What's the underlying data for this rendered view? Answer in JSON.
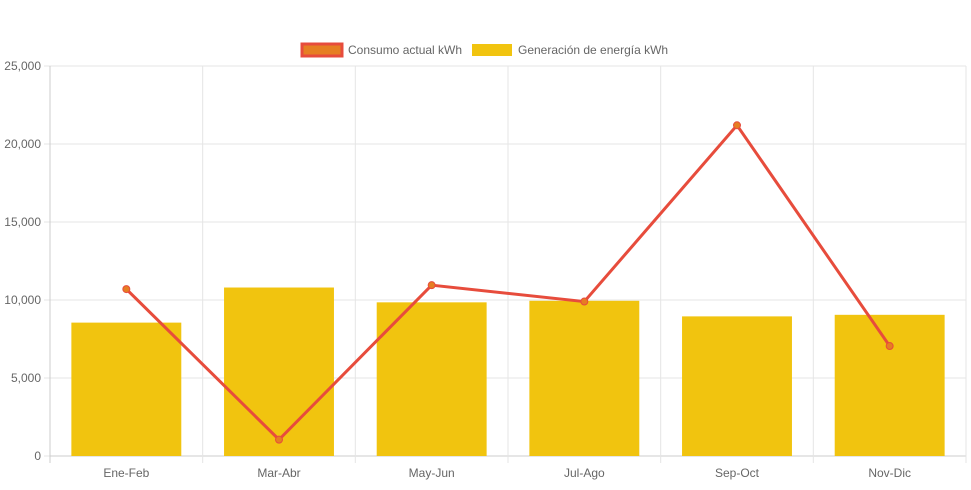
{
  "chart_data": {
    "type": "bar",
    "categories": [
      "Ene-Feb",
      "Mar-Abr",
      "May-Jun",
      "Jul-Ago",
      "Sep-Oct",
      "Nov-Dic"
    ],
    "series": [
      {
        "name": "Consumo actual kWh",
        "type": "line",
        "values": [
          10700,
          1050,
          10950,
          9900,
          21200,
          7050
        ],
        "color": "#e74c3c",
        "point_color": "#e67e22"
      },
      {
        "name": "Generación de energía kWh",
        "type": "bar",
        "values": [
          8550,
          10800,
          9850,
          9950,
          8950,
          9050
        ],
        "color": "#f1c40f"
      }
    ],
    "ylim": [
      0,
      25000
    ],
    "yticks": [
      0,
      5000,
      10000,
      15000,
      20000,
      25000
    ],
    "ytick_labels": [
      "0",
      "5,000",
      "10,000",
      "15,000",
      "20,000",
      "25,000"
    ],
    "grid": true,
    "legend_position": "top-center"
  }
}
